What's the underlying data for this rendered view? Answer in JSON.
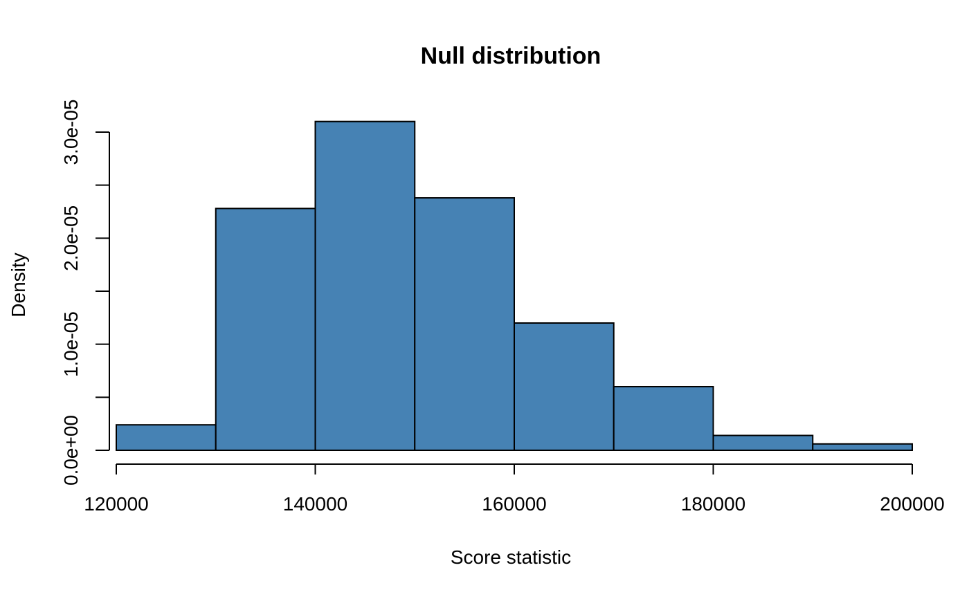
{
  "chart_data": {
    "type": "bar",
    "title": "Null distribution",
    "xlabel": "Score statistic",
    "ylabel": "Density",
    "bins": [
      {
        "start": 120000,
        "end": 130000,
        "value": 2.4e-06
      },
      {
        "start": 130000,
        "end": 140000,
        "value": 2.28e-05
      },
      {
        "start": 140000,
        "end": 150000,
        "value": 3.1e-05
      },
      {
        "start": 150000,
        "end": 160000,
        "value": 2.38e-05
      },
      {
        "start": 160000,
        "end": 170000,
        "value": 1.2e-05
      },
      {
        "start": 170000,
        "end": 180000,
        "value": 6e-06
      },
      {
        "start": 180000,
        "end": 190000,
        "value": 1.4e-06
      },
      {
        "start": 190000,
        "end": 200000,
        "value": 6e-07
      }
    ],
    "xlim": [
      120000,
      200000
    ],
    "ylim": [
      0,
      3.1e-05
    ],
    "x_ticks": [
      {
        "value": 120000,
        "label": "120000"
      },
      {
        "value": 140000,
        "label": "140000"
      },
      {
        "value": 160000,
        "label": "160000"
      },
      {
        "value": 180000,
        "label": "180000"
      },
      {
        "value": 200000,
        "label": "200000"
      }
    ],
    "y_ticks": [
      {
        "value": 0,
        "label": "0.0e+00"
      },
      {
        "value": 5e-06,
        "label": ""
      },
      {
        "value": 1e-05,
        "label": "1.0e-05"
      },
      {
        "value": 1.5e-05,
        "label": ""
      },
      {
        "value": 2e-05,
        "label": "2.0e-05"
      },
      {
        "value": 2.5e-05,
        "label": ""
      },
      {
        "value": 3e-05,
        "label": "3.0e-05"
      }
    ],
    "bar_color": "#4682b4",
    "grid": false,
    "legend": "none"
  }
}
